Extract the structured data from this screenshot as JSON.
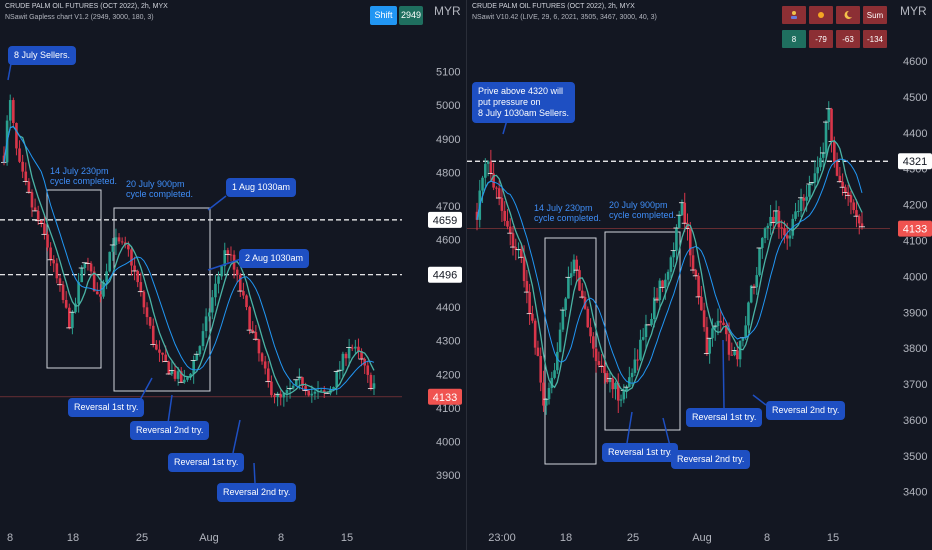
{
  "colors": {
    "up": "#26a69a",
    "down": "#ef5350",
    "candle_up": "#2aa08f",
    "candle_down": "#d9364a",
    "ma1": "#4ab3a5",
    "ma2": "#2196f3",
    "bg": "#131722",
    "callout": "#1e4fc2",
    "annotation": "#3f8ef8",
    "price_red": "#f05350",
    "sum_cell": "#8c2f34",
    "sum_icon_cell": "#b03a3a",
    "badge_shift": "#2196f3",
    "badge_value": "#1f6f5f"
  },
  "left": {
    "header_line1": "CRUDE PALM OIL FUTURES (OCT 2022), 2h, MYX",
    "header_line2": "NSawit Gapless chart V1.2 (2949, 3000, 180, 3)",
    "unit": "MYR",
    "badge_shift": "Shift",
    "badge_value": "2949",
    "callouts": {
      "c1": "8 July Sellers.",
      "c2": "1 Aug 1030am",
      "c3": "2 Aug 1030am",
      "c4": "Reversal 1st try.",
      "c5": "Reversal 2nd try.",
      "c6": "Reversal 1st try.",
      "c7": "Reversal 2nd try."
    },
    "annotations": {
      "a1": "14 July 230pm\ncycle completed.",
      "a2": "20 July 900pm\ncycle completed."
    },
    "price_tags": {
      "p1": "4659",
      "p2": "4496",
      "p3": "4133"
    }
  },
  "right": {
    "header_line1": "CRUDE PALM OIL FUTURES (OCT 2022), 2h, MYX",
    "header_line2": "NSawit V10.42 (LIVE, 29, 6, 2021, 3505, 3467, 3000, 40, 3)",
    "unit": "MYR",
    "callouts": {
      "c1": "Prive above 4320 will\nput pressure on\n8 July 1030am Sellers.",
      "c2": "Reversal 1st try.",
      "c3": "Reversal 2nd try.",
      "c4": "Reversal 1st try.",
      "c5": "Reversal 2nd try."
    },
    "annotations": {
      "a1": "14 July 230pm\ncycle completed.",
      "a2": "20 July 900pm\ncycle completed."
    },
    "price_tags": {
      "p1": "4321",
      "p2": "4133"
    },
    "summary": {
      "icons": [
        "person-icon",
        "sun-icon",
        "moon-icon"
      ],
      "sum_label": "Sum",
      "values": [
        "8",
        "-79",
        "-63",
        "-134"
      ]
    }
  },
  "chart_data": [
    {
      "type": "candlestick",
      "title": "CRUDE PALM OIL FUTURES (OCT 2022), 2h, MYX",
      "ylabel": "MYR",
      "ylim": [
        3850,
        5170
      ],
      "yticks": [
        3900,
        4000,
        4100,
        4200,
        4300,
        4400,
        4500,
        4600,
        4700,
        4800,
        4900,
        5000,
        5100
      ],
      "xticks": [
        "8",
        "18",
        "25",
        "Aug",
        "8",
        "15"
      ],
      "close_path": [
        [
          0,
          4850
        ],
        [
          4,
          5020
        ],
        [
          10,
          4830
        ],
        [
          20,
          4700
        ],
        [
          30,
          4600
        ],
        [
          38,
          4480
        ],
        [
          48,
          4340
        ],
        [
          58,
          4550
        ],
        [
          68,
          4420
        ],
        [
          78,
          4600
        ],
        [
          90,
          4560
        ],
        [
          100,
          4410
        ],
        [
          110,
          4260
        ],
        [
          120,
          4210
        ],
        [
          130,
          4170
        ],
        [
          142,
          4300
        ],
        [
          150,
          4430
        ],
        [
          160,
          4580
        ],
        [
          170,
          4450
        ],
        [
          180,
          4300
        ],
        [
          190,
          4170
        ],
        [
          198,
          4120
        ],
        [
          206,
          4150
        ],
        [
          214,
          4180
        ],
        [
          222,
          4140
        ],
        [
          232,
          4140
        ],
        [
          240,
          4200
        ],
        [
          248,
          4290
        ],
        [
          256,
          4250
        ],
        [
          262,
          4180
        ],
        [
          266,
          4170
        ]
      ],
      "horizontal_lines": [
        4659,
        4496
      ],
      "last_price": 4133,
      "grid": false
    },
    {
      "type": "candlestick",
      "title": "CRUDE PALM OIL FUTURES (OCT 2022), 2h, MYX",
      "ylabel": "MYR",
      "ylim": [
        3360,
        4670
      ],
      "yticks": [
        3400,
        3500,
        3600,
        3700,
        3800,
        3900,
        4000,
        4100,
        4200,
        4300,
        4400,
        4500,
        4600
      ],
      "xticks": [
        "23:00",
        "18",
        "25",
        "Aug",
        "8",
        "15"
      ],
      "close_path": [
        [
          0,
          4180
        ],
        [
          8,
          4320
        ],
        [
          16,
          4250
        ],
        [
          26,
          4130
        ],
        [
          36,
          4050
        ],
        [
          46,
          3860
        ],
        [
          56,
          3620
        ],
        [
          62,
          3700
        ],
        [
          70,
          3900
        ],
        [
          80,
          4040
        ],
        [
          88,
          3920
        ],
        [
          98,
          3780
        ],
        [
          110,
          3700
        ],
        [
          120,
          3660
        ],
        [
          130,
          3760
        ],
        [
          140,
          3860
        ],
        [
          150,
          3960
        ],
        [
          160,
          4050
        ],
        [
          170,
          4200
        ],
        [
          180,
          4000
        ],
        [
          190,
          3800
        ],
        [
          200,
          3900
        ],
        [
          208,
          3800
        ],
        [
          216,
          3780
        ],
        [
          226,
          3950
        ],
        [
          236,
          4100
        ],
        [
          246,
          4180
        ],
        [
          256,
          4100
        ],
        [
          266,
          4210
        ],
        [
          276,
          4260
        ],
        [
          284,
          4310
        ],
        [
          290,
          4480
        ],
        [
          296,
          4280
        ],
        [
          304,
          4220
        ],
        [
          312,
          4180
        ],
        [
          318,
          4160
        ]
      ],
      "horizontal_lines": [
        4321
      ],
      "last_price": 4133,
      "grid": false
    }
  ]
}
